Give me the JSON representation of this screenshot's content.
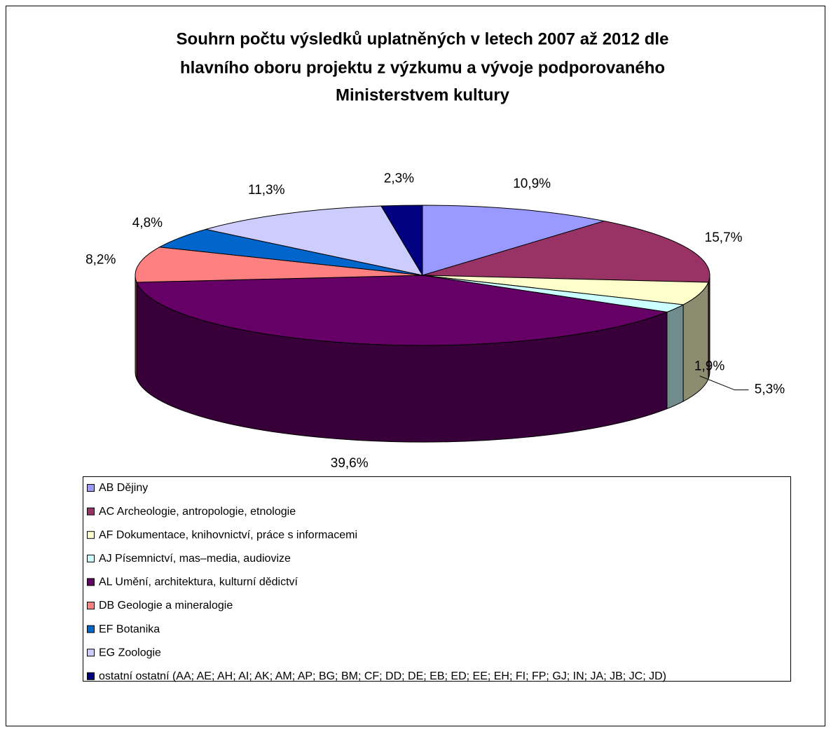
{
  "chart_data": {
    "type": "pie3d",
    "title": [
      "Souhrn počtu výsledků uplatněných v letech 2007 až 2012 dle",
      "hlavního oboru projektu z výzkumu a vývoje podporovaného",
      "Ministerstvem kultury"
    ],
    "categories": [
      "AB Dějiny",
      "AC Archeologie, antropologie, etnologie",
      "AF Dokumentace, knihovnictví, práce s informacemi",
      "AJ Písemnictví, mas–media, audiovize",
      "AL Umění, architektura, kulturní dědictví",
      "DB Geologie a mineralogie",
      "EF Botanika",
      "EG Zoologie",
      "ostatní ostatní (AA; AE; AH; AI; AK; AM; AP; BG; BM; CF; DD; DE; EB; ED; EE; EH; FI; FP; GJ; IN; JA; JB; JC; JD)"
    ],
    "values": [
      10.9,
      15.7,
      5.3,
      1.9,
      39.6,
      8.2,
      4.8,
      11.3,
      2.3
    ],
    "value_labels": [
      "10,9%",
      "15,7%",
      "5,3%",
      "1,9%",
      "39,6%",
      "8,2%",
      "4,8%",
      "11,3%",
      "2,3%"
    ],
    "colors": [
      "#9999ff",
      "#993366",
      "#ffffcc",
      "#ccffff",
      "#660066",
      "#ff8080",
      "#0066cc",
      "#ccccff",
      "#000080"
    ],
    "legend": "bottom"
  }
}
